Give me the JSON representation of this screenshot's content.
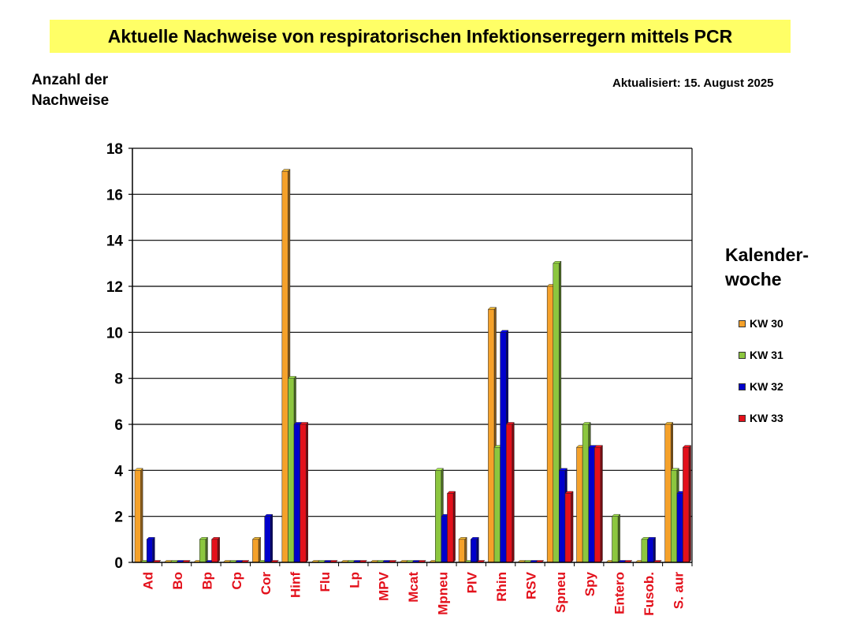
{
  "title": "Aktuelle Nachweise von respiratorischen Infektionserregern mittels PCR",
  "ylabel_lines": [
    "Anzahl der",
    "Nachweise"
  ],
  "updated": "Aktualisiert:  15. August 2025",
  "legend_title_lines": [
    "Kalender-",
    "woche"
  ],
  "colors": {
    "KW 30": "#f5a12a",
    "KW 31": "#8cc63f",
    "KW 32": "#0000cc",
    "KW 33": "#e3101b",
    "axis_label": "#e3101b"
  },
  "chart_data": {
    "type": "bar",
    "categories": [
      "Ad",
      "Bo",
      "Bp",
      "Cp",
      "Cor",
      "Hinf",
      "Flu",
      "Lp",
      "MPV",
      "Mcat",
      "Mpneu",
      "PIV",
      "Rhin",
      "RSV",
      "Spneu",
      "Spy",
      "Entero",
      "Fusob.",
      "S. aur"
    ],
    "series": [
      {
        "name": "KW 30",
        "values": [
          4,
          0,
          0,
          0,
          1,
          17,
          0,
          0,
          0,
          0,
          0,
          1,
          11,
          0,
          12,
          5,
          0,
          0,
          6
        ]
      },
      {
        "name": "KW 31",
        "values": [
          0,
          0,
          1,
          0,
          0,
          8,
          0,
          0,
          0,
          0,
          4,
          0,
          5,
          0,
          13,
          6,
          2,
          1,
          4
        ]
      },
      {
        "name": "KW 32",
        "values": [
          1,
          0,
          0,
          0,
          2,
          6,
          0,
          0,
          0,
          0,
          2,
          1,
          10,
          0,
          4,
          5,
          0,
          1,
          3
        ]
      },
      {
        "name": "KW 33",
        "values": [
          0,
          0,
          1,
          0,
          0,
          6,
          0,
          0,
          0,
          0,
          3,
          0,
          6,
          0,
          3,
          5,
          0,
          0,
          5
        ]
      }
    ],
    "ylim": [
      0,
      18
    ],
    "yticks": [
      0,
      2,
      4,
      6,
      8,
      10,
      12,
      14,
      16,
      18
    ],
    "grid": true,
    "legend_position": "right"
  }
}
